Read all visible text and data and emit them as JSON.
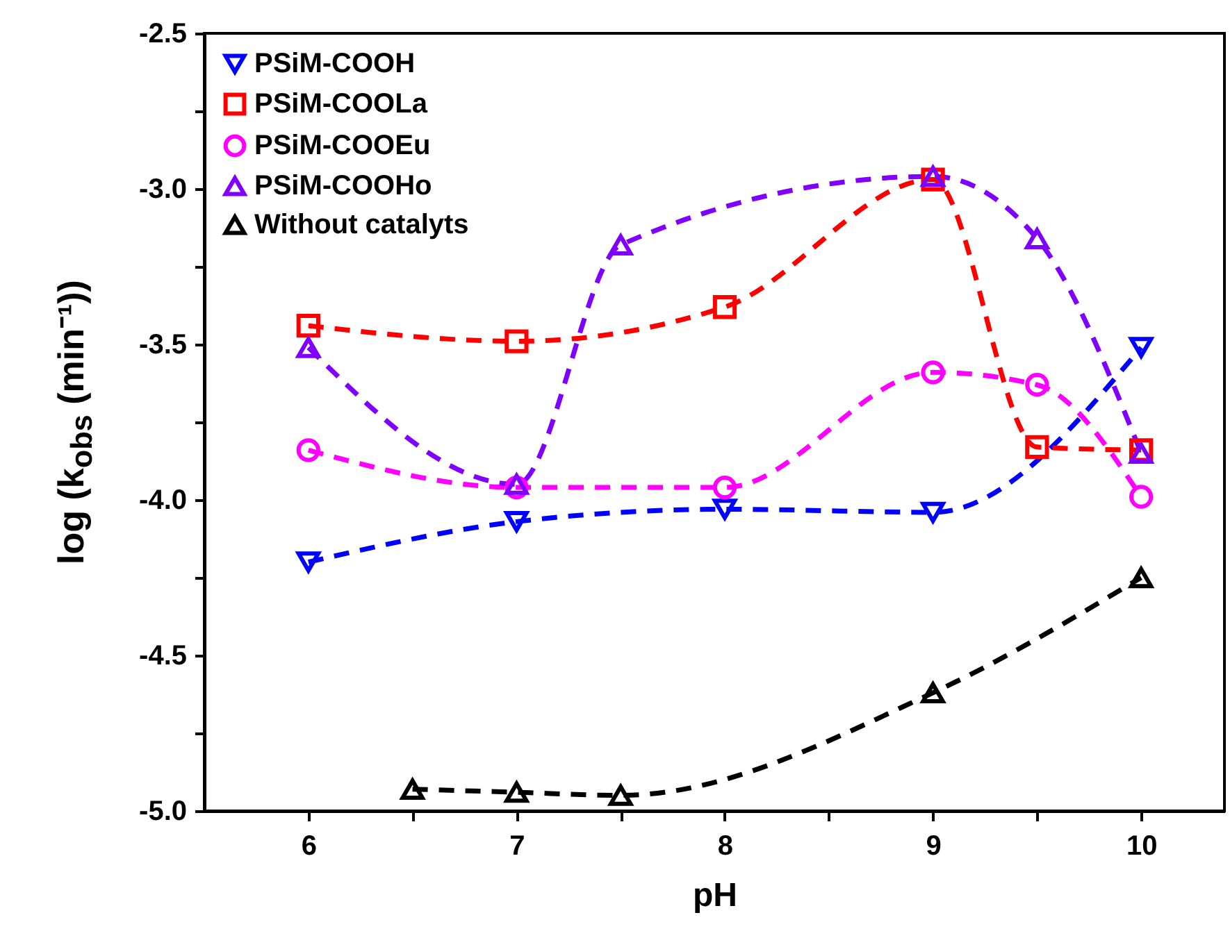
{
  "chart_data": {
    "type": "line",
    "xlabel": "pH",
    "ylabel": "log (k$_{obs}$ (min⁻¹))",
    "line_style": "dashed",
    "legend": "top left",
    "grid": false,
    "xlim": [
      5.5,
      10.4
    ],
    "xticks": [
      6,
      {
        "value": 6.5,
        "label": null
      },
      7,
      {
        "value": 7.5,
        "label": null
      },
      8,
      {
        "value": 8.5,
        "label": null
      },
      9,
      {
        "value": 9.5,
        "label": null
      },
      10
    ],
    "ylim": [
      -5.0,
      -2.5
    ],
    "yticks": [
      {
        "value": -5,
        "label": "-5.0"
      },
      {
        "value": -4.75,
        "label": null
      },
      {
        "value": -4.5,
        "label": "-4.5"
      },
      {
        "value": -4.25,
        "label": null
      },
      {
        "value": -4.0,
        "label": "-4.0"
      },
      {
        "value": -3.75,
        "label": null
      },
      {
        "value": -3.5,
        "label": "-3.5"
      },
      {
        "value": -3.25,
        "label": null
      },
      {
        "value": -3.0,
        "label": "-3.0"
      },
      {
        "value": -2.75,
        "label": null
      },
      -2.5
    ],
    "series": [
      {
        "name": "PSiM-COOH",
        "color": "#0000ff",
        "marker": "triangle-down",
        "x": [
          6,
          7,
          8,
          9,
          10
        ],
        "values": [
          -4.2,
          -4.07,
          -4.03,
          -4.04,
          -3.51
        ]
      },
      {
        "name": "PSiM-COOLa",
        "color": "#ff0000",
        "marker": "square",
        "x": [
          6,
          7,
          8,
          9,
          9.5,
          10
        ],
        "values": [
          -3.44,
          -3.49,
          -3.38,
          -2.97,
          -3.83,
          -3.84
        ]
      },
      {
        "name": "PSiM-COOEu",
        "color": "#ff00ff",
        "marker": "circle",
        "x": [
          6,
          7,
          8,
          9,
          9.5,
          10
        ],
        "values": [
          -3.84,
          -3.96,
          -3.96,
          -3.59,
          -3.63,
          -3.99
        ]
      },
      {
        "name": "PSiM-COOHo",
        "color": "#8000ff",
        "marker": "triangle",
        "x": [
          6,
          7,
          7.5,
          9,
          9.5,
          10
        ],
        "values": [
          -3.51,
          -3.95,
          -3.18,
          -2.96,
          -3.16,
          -3.85
        ]
      },
      {
        "name": "Without catalyts",
        "color": "#000000",
        "marker": "triangle",
        "x": [
          6.5,
          7,
          7.5,
          9,
          10
        ],
        "values": [
          -4.93,
          -4.94,
          -4.95,
          -4.62,
          -4.25
        ]
      }
    ]
  }
}
